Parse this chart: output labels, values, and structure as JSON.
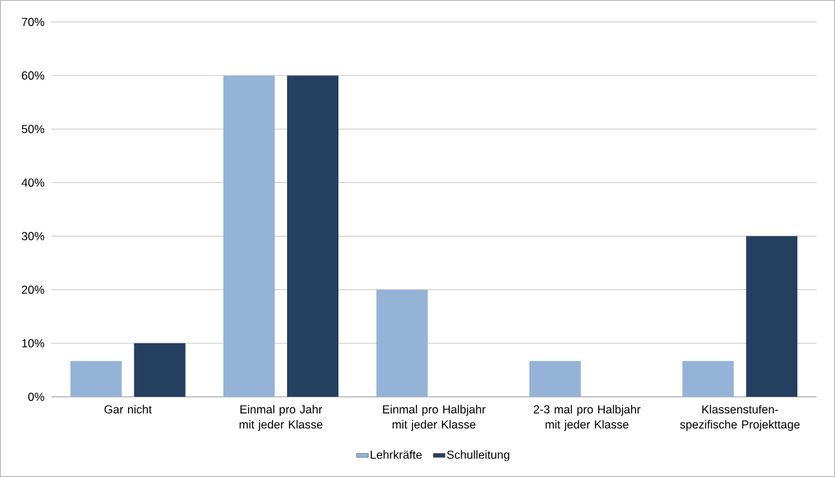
{
  "chart_data": {
    "type": "bar",
    "categories": [
      "Gar nicht",
      "Einmal pro Jahr mit jeder Klasse",
      "Einmal pro Halbjahr mit jeder Klasse",
      "2-3 mal pro Halbjahr mit jeder Klasse",
      "Klassenstufen-spezifische Projekttage"
    ],
    "series": [
      {
        "name": "Lehrkräfte",
        "color": "#95b3d7",
        "values": [
          6.7,
          60,
          20,
          6.7,
          6.7
        ]
      },
      {
        "name": "Schulleitung",
        "color": "#243f60",
        "values": [
          10,
          60,
          0,
          0,
          30
        ]
      }
    ],
    "ylim": [
      0,
      70
    ],
    "yticks": [
      {
        "value": 0,
        "label": "0%"
      },
      {
        "value": 10,
        "label": "10%"
      },
      {
        "value": 20,
        "label": "20%"
      },
      {
        "value": 30,
        "label": "30%"
      },
      {
        "value": 40,
        "label": "40%"
      },
      {
        "value": 50,
        "label": "50%"
      },
      {
        "value": 60,
        "label": "60%"
      },
      {
        "value": 70,
        "label": "70%"
      }
    ],
    "grid": "y",
    "legend": "bottom"
  }
}
